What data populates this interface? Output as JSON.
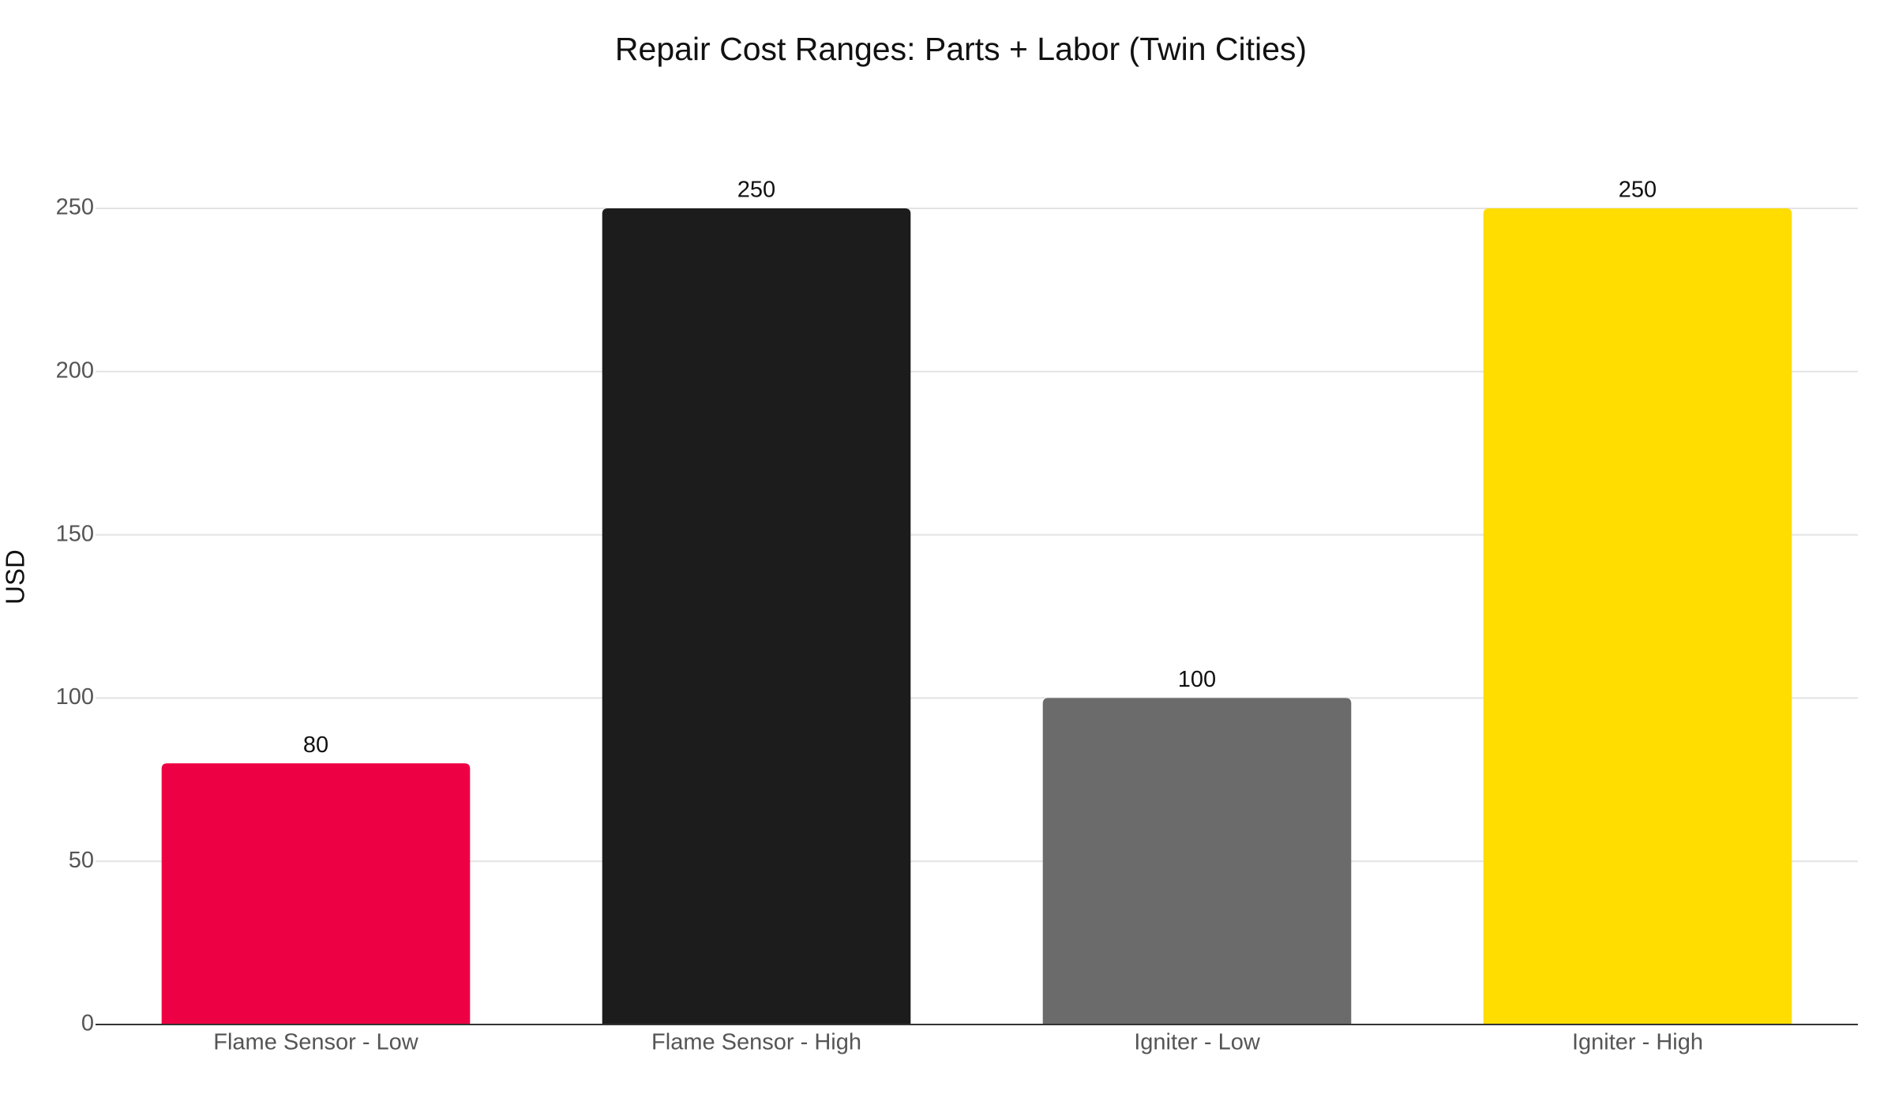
{
  "chart_data": {
    "type": "bar",
    "title": "Repair Cost Ranges: Parts + Labor (Twin Cities)",
    "y_label": "USD",
    "categories": [
      "Flame Sensor - Low",
      "Flame Sensor - High",
      "Igniter - Low",
      "Igniter - High"
    ],
    "values": [
      80,
      250,
      100,
      250
    ],
    "colors": [
      "#ee0044",
      "#1c1c1c",
      "#6b6b6b",
      "#ffdd00"
    ],
    "ylim": [
      0,
      250
    ],
    "yticks": [
      0,
      50,
      100,
      150,
      200,
      250
    ],
    "grid": true
  }
}
